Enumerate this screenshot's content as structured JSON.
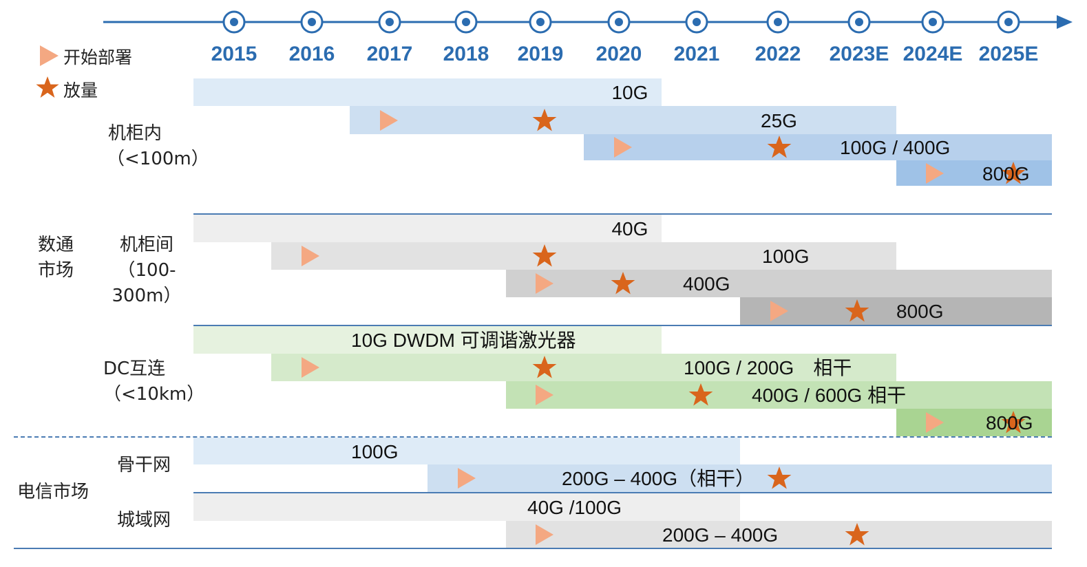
{
  "timeline": {
    "years": [
      "2015",
      "2016",
      "2017",
      "2018",
      "2019",
      "2020",
      "2021",
      "2022",
      "2023E",
      "2024E",
      "2025E"
    ],
    "axis_color": "#2b6cb0"
  },
  "legend": {
    "start_deploy": {
      "icon": "triangle-icon",
      "label": "开始部署",
      "color": "#f4a882"
    },
    "volume": {
      "icon": "star-icon",
      "label": "放量",
      "color": "#d9651c"
    }
  },
  "groups": [
    {
      "id": "datacom",
      "label_lines": [
        "数通",
        "市场"
      ]
    },
    {
      "id": "telecom",
      "label_lines": [
        "电信市场"
      ]
    }
  ],
  "sections": [
    {
      "id": "intra-rack",
      "label_lines": [
        "机柜内",
        "（<100m）"
      ],
      "rows": [
        {
          "label": "10G",
          "start": 2015,
          "end": 2021,
          "color": "#deebf7",
          "deploy": null,
          "volume": null
        },
        {
          "label": "25G",
          "start": 2017,
          "end": 2024,
          "color": "#cddff1",
          "deploy": 2017,
          "volume": 2019
        },
        {
          "label": "100G / 400G",
          "start": 2020,
          "end": 2026,
          "color": "#b7d0ec",
          "deploy": 2020,
          "volume": 2022
        },
        {
          "label": "800G",
          "start": 2024,
          "end": 2026,
          "color": "#9fc2e7",
          "deploy": 2024,
          "volume": 2025
        }
      ]
    },
    {
      "id": "inter-rack",
      "label_lines": [
        "机柜间",
        "（100-",
        "300m）"
      ],
      "rows": [
        {
          "label": "40G",
          "start": 2015,
          "end": 2021,
          "color": "#eeeeee",
          "deploy": null,
          "volume": null
        },
        {
          "label": "100G",
          "start": 2016,
          "end": 2024,
          "color": "#e2e2e2",
          "deploy": 2016,
          "volume": 2019
        },
        {
          "label": "400G",
          "start": 2019,
          "end": 2026,
          "color": "#d0d0d0",
          "deploy": 2019,
          "volume": 2020
        },
        {
          "label": "800G",
          "start": 2022,
          "end": 2026,
          "color": "#b5b5b5",
          "deploy": 2022,
          "volume": 2023
        }
      ]
    },
    {
      "id": "dci",
      "label_lines": [
        "DC互连",
        "（<10km）"
      ],
      "rows": [
        {
          "label": "10G DWDM 可调谐激光器",
          "start": 2015,
          "end": 2021,
          "color": "#e6f2df",
          "deploy": null,
          "volume": null
        },
        {
          "label": "100G / 200G　相干",
          "start": 2016,
          "end": 2024,
          "color": "#d5eacb",
          "deploy": 2016,
          "volume": 2019
        },
        {
          "label": "400G / 600G  相干",
          "start": 2019,
          "end": 2026,
          "color": "#c3e2b5",
          "deploy": 2019,
          "volume": 2021
        },
        {
          "label": "800G",
          "start": 2024,
          "end": 2026,
          "color": "#a9d492",
          "deploy": 2024,
          "volume": 2025
        }
      ]
    },
    {
      "id": "backbone",
      "label_lines": [
        "骨干网"
      ],
      "rows": [
        {
          "label": "100G",
          "start": 2015,
          "end": 2022,
          "color": "#deebf7",
          "deploy": null,
          "volume": null
        },
        {
          "label": "200G – 400G（相干）",
          "start": 2018,
          "end": 2026,
          "color": "#cddff1",
          "deploy": 2018,
          "volume": 2022
        }
      ]
    },
    {
      "id": "metro",
      "label_lines": [
        "城域网"
      ],
      "rows": [
        {
          "label": "40G /100G",
          "start": 2015,
          "end": 2022,
          "color": "#eeeeee",
          "deploy": null,
          "volume": null
        },
        {
          "label": "200G –  400G",
          "start": 2019,
          "end": 2026,
          "color": "#e2e2e2",
          "deploy": 2019,
          "volume": 2023
        }
      ]
    }
  ]
}
